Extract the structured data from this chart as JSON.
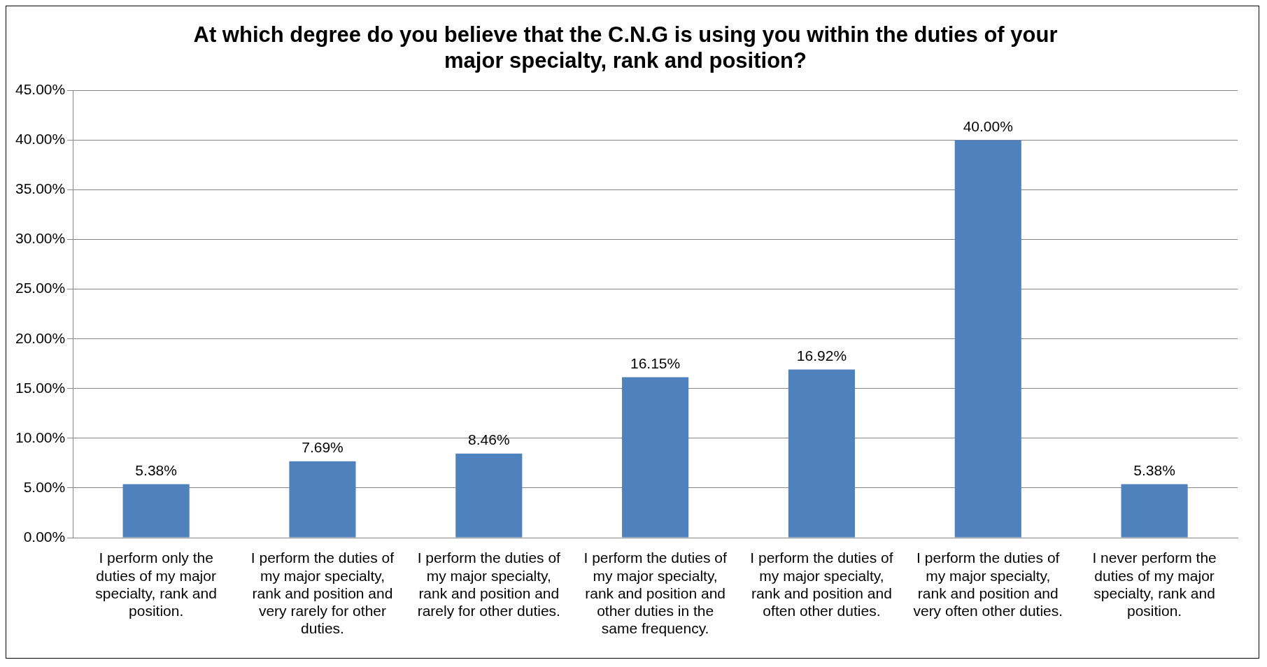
{
  "chart_data": {
    "type": "bar",
    "title": "At which degree do you believe that the C.N.G is using you within the duties of your major specialty, rank and position?",
    "categories": [
      "I perform only the duties of my major specialty, rank and position.",
      "I perform the duties of my major specialty, rank and position and very rarely for other duties.",
      "I perform the duties of my major specialty, rank and position and rarely for other duties.",
      "I perform the duties of my major specialty, rank and position and other duties in the same frequency.",
      "I perform the duties of my major specialty, rank and position and often other duties.",
      "I perform the duties of my major specialty, rank and position and very often other duties.",
      "I never perform the duties of my major specialty, rank and position."
    ],
    "values": [
      5.38,
      7.69,
      8.46,
      16.15,
      16.92,
      40.0,
      5.38
    ],
    "value_labels": [
      "5.38%",
      "7.69%",
      "8.46%",
      "16.15%",
      "16.92%",
      "40.00%",
      "5.38%"
    ],
    "color": "#4f81bd",
    "ylim": [
      0,
      45
    ],
    "yticks": [
      {
        "value": 0,
        "label": "0.00%"
      },
      {
        "value": 5,
        "label": "5.00%"
      },
      {
        "value": 10,
        "label": "10.00%"
      },
      {
        "value": 15,
        "label": "15.00%"
      },
      {
        "value": 20,
        "label": "20.00%"
      },
      {
        "value": 25,
        "label": "25.00%"
      },
      {
        "value": 30,
        "label": "30.00%"
      },
      {
        "value": 35,
        "label": "35.00%"
      },
      {
        "value": 40,
        "label": "40.00%"
      },
      {
        "value": 45,
        "label": "45.00%"
      }
    ],
    "grid": "y",
    "legend": false
  }
}
